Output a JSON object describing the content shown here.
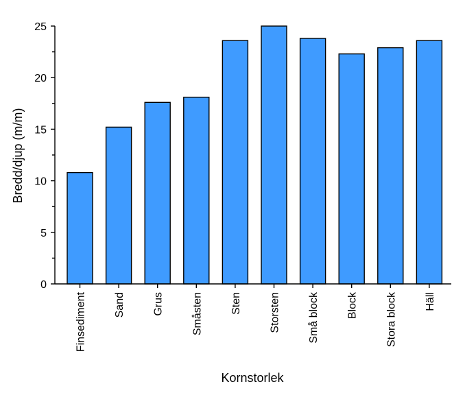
{
  "chart_data": {
    "type": "bar",
    "title": "",
    "xlabel": "Kornstorlek",
    "ylabel": "Bredd/djup (m/m)",
    "categories": [
      "Finsediment",
      "Sand",
      "Grus",
      "Småsten",
      "Sten",
      "Storsten",
      "Små block",
      "Block",
      "Stora block",
      "Häll"
    ],
    "values": [
      10.8,
      15.2,
      17.6,
      18.1,
      23.6,
      25.0,
      23.8,
      22.3,
      22.9,
      23.6
    ],
    "ylim": [
      0,
      25
    ],
    "yticks": [
      0,
      5,
      10,
      15,
      20,
      25
    ],
    "grid": false,
    "bar_color": "#3f9bff"
  }
}
